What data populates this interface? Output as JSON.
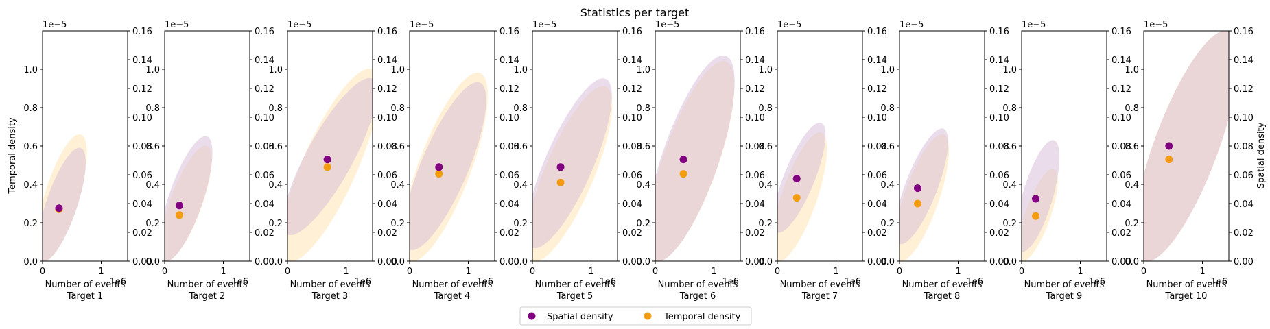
{
  "chart_data": {
    "type": "scatter",
    "title": "Statistics per target",
    "left_ylabel": "Temporal density",
    "right_ylabel": "Spatial density",
    "xlabel": "Number of events",
    "x_offset_text": "1e6",
    "left_offset_text": "1e−5",
    "xlim": [
      0,
      1.45
    ],
    "left_ylim": [
      0,
      1.2
    ],
    "right_ylim": [
      0,
      0.16
    ],
    "x_ticks": [
      0,
      1
    ],
    "left_ticks": [
      0.0,
      0.2,
      0.4,
      0.6,
      0.8,
      1.0
    ],
    "right_ticks": [
      0.0,
      0.02,
      0.04,
      0.06,
      0.08,
      0.1,
      0.12,
      0.14,
      0.16
    ],
    "legend": {
      "placement": "bottom-center",
      "entries": [
        {
          "label": "Spatial density",
          "color": "#800080"
        },
        {
          "label": "Temporal density",
          "color": "#f39c12"
        }
      ]
    },
    "ellipse_colors": {
      "spatial": "#d8bfd8",
      "temporal": "#ffe4b5"
    },
    "targets": [
      {
        "label": "Target 1",
        "spatial": {
          "x": 0.28,
          "y": 0.276
        },
        "temporal": {
          "x": 0.28,
          "y": 0.27
        },
        "spatial_range": {
          "x": [
            0.0,
            0.65
          ],
          "y": [
            0.0,
            0.59
          ]
        },
        "temporal_range": {
          "x": [
            0.0,
            0.65
          ],
          "y": [
            0.0,
            0.66
          ]
        }
      },
      {
        "label": "Target 2",
        "spatial": {
          "x": 0.25,
          "y": 0.29
        },
        "temporal": {
          "x": 0.25,
          "y": 0.24
        },
        "spatial_range": {
          "x": [
            0.0,
            0.72
          ],
          "y": [
            0.0,
            0.65
          ]
        },
        "temporal_range": {
          "x": [
            0.0,
            0.72
          ],
          "y": [
            0.0,
            0.6
          ]
        }
      },
      {
        "label": "Target 3",
        "spatial": {
          "x": 0.68,
          "y": 0.53
        },
        "temporal": {
          "x": 0.68,
          "y": 0.49
        },
        "spatial_range": {
          "x": [
            0.0,
            1.45
          ],
          "y": [
            0.14,
            0.95
          ]
        },
        "temporal_range": {
          "x": [
            0.0,
            1.45
          ],
          "y": [
            0.0,
            1.0
          ]
        }
      },
      {
        "label": "Target 4",
        "spatial": {
          "x": 0.5,
          "y": 0.49
        },
        "temporal": {
          "x": 0.5,
          "y": 0.455
        },
        "spatial_range": {
          "x": [
            0.0,
            1.2
          ],
          "y": [
            0.06,
            0.93
          ]
        },
        "temporal_range": {
          "x": [
            0.0,
            1.2
          ],
          "y": [
            0.0,
            0.98
          ]
        }
      },
      {
        "label": "Target 5",
        "spatial": {
          "x": 0.48,
          "y": 0.49
        },
        "temporal": {
          "x": 0.48,
          "y": 0.41
        },
        "spatial_range": {
          "x": [
            0.0,
            1.25
          ],
          "y": [
            0.07,
            0.95
          ]
        },
        "temporal_range": {
          "x": [
            0.0,
            1.25
          ],
          "y": [
            0.0,
            0.91
          ]
        }
      },
      {
        "label": "Target 6",
        "spatial": {
          "x": 0.48,
          "y": 0.53
        },
        "temporal": {
          "x": 0.48,
          "y": 0.455
        },
        "spatial_range": {
          "x": [
            0.0,
            1.2
          ],
          "y": [
            0.0,
            1.07
          ]
        },
        "temporal_range": {
          "x": [
            0.0,
            1.2
          ],
          "y": [
            0.0,
            1.04
          ]
        }
      },
      {
        "label": "Target 7",
        "spatial": {
          "x": 0.33,
          "y": 0.43
        },
        "temporal": {
          "x": 0.33,
          "y": 0.33
        },
        "spatial_range": {
          "x": [
            0.0,
            0.75
          ],
          "y": [
            0.15,
            0.72
          ]
        },
        "temporal_range": {
          "x": [
            0.0,
            0.75
          ],
          "y": [
            0.0,
            0.67
          ]
        }
      },
      {
        "label": "Target 8",
        "spatial": {
          "x": 0.31,
          "y": 0.38
        },
        "temporal": {
          "x": 0.31,
          "y": 0.3
        },
        "spatial_range": {
          "x": [
            0.0,
            0.75
          ],
          "y": [
            0.09,
            0.69
          ]
        },
        "temporal_range": {
          "x": [
            0.0,
            0.75
          ],
          "y": [
            0.0,
            0.66
          ]
        }
      },
      {
        "label": "Target 9",
        "spatial": {
          "x": 0.24,
          "y": 0.325
        },
        "temporal": {
          "x": 0.24,
          "y": 0.235
        },
        "spatial_range": {
          "x": [
            0.0,
            0.55
          ],
          "y": [
            0.05,
            0.63
          ]
        },
        "temporal_range": {
          "x": [
            0.0,
            0.55
          ],
          "y": [
            0.0,
            0.48
          ]
        }
      },
      {
        "label": "Target 10",
        "spatial": {
          "x": 0.43,
          "y": 0.6
        },
        "temporal": {
          "x": 0.43,
          "y": 0.53
        },
        "spatial_range": {
          "x": [
            0.0,
            1.45
          ],
          "y": [
            0.0,
            1.2
          ]
        },
        "temporal_range": {
          "x": [
            0.0,
            1.45
          ],
          "y": [
            0.0,
            1.2
          ]
        }
      }
    ]
  }
}
